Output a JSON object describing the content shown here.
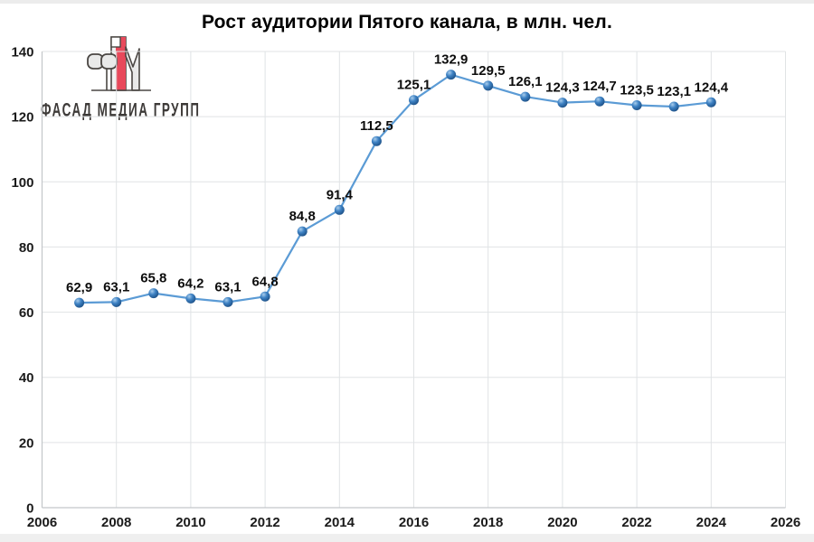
{
  "page": {
    "top_strip_color": "#ececec",
    "bottom_strip_color": "#efefef",
    "background": "#ffffff"
  },
  "logo": {
    "text": "ФАСАД МЕДИА ГРУПП",
    "colors": {
      "red": "#e8495b",
      "gray_fill": "#e9e9e9",
      "light_fill": "#f2f2f2",
      "outline": "#4a4643",
      "text": "#3d3a38"
    }
  },
  "chart_data": {
    "type": "line",
    "title": "Рост аудитории Пятого канала, в млн. чел.",
    "x": [
      2007,
      2008,
      2009,
      2010,
      2011,
      2012,
      2013,
      2014,
      2015,
      2016,
      2017,
      2018,
      2019,
      2020,
      2021,
      2022,
      2023,
      2024
    ],
    "values": [
      62.9,
      63.1,
      65.8,
      64.2,
      63.1,
      64.8,
      84.8,
      91.4,
      112.5,
      125.1,
      132.9,
      129.5,
      126.1,
      124.3,
      124.7,
      123.5,
      123.1,
      124.4
    ],
    "point_labels": [
      "62,9",
      "63,1",
      "65,8",
      "64,2",
      "63,1",
      "64,8",
      "84,8",
      "91,4",
      "112,5",
      "125,1",
      "132,9",
      "129,5",
      "126,1",
      "124,3",
      "124,7",
      "123,5",
      "123,1",
      "124,4"
    ],
    "x_ticks": [
      2006,
      2008,
      2010,
      2012,
      2014,
      2016,
      2018,
      2020,
      2022,
      2024,
      2026
    ],
    "y_ticks": [
      0,
      20,
      40,
      60,
      80,
      100,
      120,
      140
    ],
    "xlim": [
      2006,
      2026
    ],
    "ylim": [
      0,
      140
    ],
    "grid": true,
    "legend": "none",
    "colors": {
      "line": "#5b9bd5",
      "marker_highlight": "#a9cdec",
      "marker_body": "#3e82c4",
      "marker_edge": "#1c4f85",
      "grid": "#e0e3e5",
      "axis": "#c3c6c9",
      "tick_text": "#1a1a1a",
      "label_text": "#0d0d0d"
    }
  }
}
